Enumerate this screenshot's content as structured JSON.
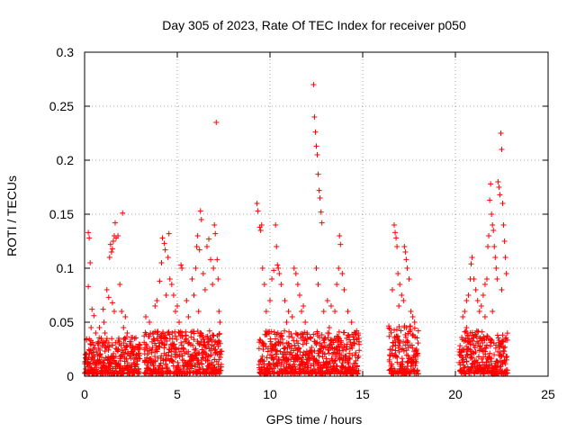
{
  "chart_data": {
    "type": "scatter",
    "title": "Day 305 of 2023, Rate Of TEC Index for receiver p050",
    "xlabel": "GPS time / hours",
    "ylabel": "ROTI / TECUs",
    "xlim": [
      0,
      25
    ],
    "ylim": [
      0,
      0.3
    ],
    "xticks": [
      0,
      5,
      10,
      15,
      20,
      25
    ],
    "xtick_labels": [
      "0",
      "5",
      "10",
      "15",
      "20",
      "25"
    ],
    "yticks": [
      0,
      0.05,
      0.1,
      0.15,
      0.2,
      0.25,
      0.3
    ],
    "ytick_labels": [
      "0",
      "0.05",
      "0.1",
      "0.15",
      "0.2",
      "0.25",
      "0.3"
    ],
    "grid": true,
    "marker": "+",
    "color": "#ff0000",
    "series": [
      {
        "name": "ROTI",
        "points": [
          [
            0.2,
            0.133
          ],
          [
            0.25,
            0.128
          ],
          [
            0.3,
            0.105
          ],
          [
            0.2,
            0.083
          ],
          [
            0.4,
            0.062
          ],
          [
            0.5,
            0.056
          ],
          [
            0.35,
            0.045
          ],
          [
            0.6,
            0.04
          ],
          [
            0.3,
            0.03
          ],
          [
            0.45,
            0.025
          ],
          [
            0.7,
            0.03
          ],
          [
            0.9,
            0.035
          ],
          [
            1.0,
            0.062
          ],
          [
            1.05,
            0.05
          ],
          [
            1.2,
            0.08
          ],
          [
            1.3,
            0.073
          ],
          [
            1.35,
            0.11
          ],
          [
            1.4,
            0.122
          ],
          [
            1.45,
            0.115
          ],
          [
            1.5,
            0.118
          ],
          [
            1.55,
            0.125
          ],
          [
            1.6,
            0.13
          ],
          [
            1.65,
            0.142
          ],
          [
            1.7,
            0.128
          ],
          [
            1.8,
            0.13
          ],
          [
            1.9,
            0.085
          ],
          [
            2.0,
            0.06
          ],
          [
            2.1,
            0.045
          ],
          [
            2.05,
            0.151
          ],
          [
            2.2,
            0.055
          ],
          [
            2.3,
            0.04
          ],
          [
            2.5,
            0.03
          ],
          [
            2.7,
            0.035
          ],
          [
            2.9,
            0.025
          ],
          [
            0.8,
            0.045
          ],
          [
            1.1,
            0.04
          ],
          [
            1.6,
            0.06
          ],
          [
            1.5,
            0.068
          ],
          [
            3.3,
            0.055
          ],
          [
            3.5,
            0.05
          ],
          [
            3.7,
            0.04
          ],
          [
            3.9,
            0.07
          ],
          [
            4.05,
            0.088
          ],
          [
            4.15,
            0.105
          ],
          [
            4.2,
            0.128
          ],
          [
            4.3,
            0.123
          ],
          [
            4.35,
            0.117
          ],
          [
            4.5,
            0.11
          ],
          [
            4.55,
            0.132
          ],
          [
            4.6,
            0.09
          ],
          [
            4.7,
            0.085
          ],
          [
            4.8,
            0.075
          ],
          [
            4.9,
            0.06
          ],
          [
            5.0,
            0.065
          ],
          [
            5.1,
            0.05
          ],
          [
            5.2,
            0.103
          ],
          [
            5.25,
            0.1
          ],
          [
            5.5,
            0.07
          ],
          [
            5.8,
            0.09
          ],
          [
            5.9,
            0.075
          ],
          [
            6.0,
            0.1
          ],
          [
            6.05,
            0.12
          ],
          [
            6.1,
            0.13
          ],
          [
            6.2,
            0.117
          ],
          [
            6.25,
            0.153
          ],
          [
            6.3,
            0.145
          ],
          [
            6.5,
            0.08
          ],
          [
            6.6,
            0.12
          ],
          [
            6.7,
            0.127
          ],
          [
            6.8,
            0.108
          ],
          [
            6.9,
            0.085
          ],
          [
            6.95,
            0.1
          ],
          [
            7.0,
            0.14
          ],
          [
            7.05,
            0.132
          ],
          [
            7.1,
            0.235
          ],
          [
            7.15,
            0.108
          ],
          [
            7.2,
            0.09
          ],
          [
            7.25,
            0.06
          ],
          [
            7.3,
            0.05
          ],
          [
            6.4,
            0.095
          ],
          [
            4.4,
            0.075
          ],
          [
            3.8,
            0.065
          ],
          [
            5.6,
            0.055
          ],
          [
            6.15,
            0.06
          ],
          [
            9.3,
            0.16
          ],
          [
            9.35,
            0.153
          ],
          [
            9.45,
            0.138
          ],
          [
            9.5,
            0.135
          ],
          [
            9.55,
            0.14
          ],
          [
            9.6,
            0.1
          ],
          [
            9.7,
            0.085
          ],
          [
            9.8,
            0.06
          ],
          [
            10.0,
            0.07
          ],
          [
            10.1,
            0.09
          ],
          [
            10.2,
            0.098
          ],
          [
            10.3,
            0.14
          ],
          [
            10.35,
            0.12
          ],
          [
            10.4,
            0.103
          ],
          [
            10.45,
            0.1
          ],
          [
            10.5,
            0.095
          ],
          [
            10.6,
            0.085
          ],
          [
            10.8,
            0.07
          ],
          [
            11.0,
            0.06
          ],
          [
            11.2,
            0.055
          ],
          [
            11.3,
            0.1
          ],
          [
            11.4,
            0.095
          ],
          [
            11.5,
            0.085
          ],
          [
            11.6,
            0.075
          ],
          [
            11.8,
            0.065
          ],
          [
            11.9,
            0.05
          ],
          [
            12.0,
            0.04
          ],
          [
            12.2,
            0.035
          ],
          [
            12.35,
            0.27
          ],
          [
            12.4,
            0.24
          ],
          [
            12.45,
            0.226
          ],
          [
            12.5,
            0.213
          ],
          [
            12.55,
            0.205
          ],
          [
            12.6,
            0.187
          ],
          [
            12.65,
            0.172
          ],
          [
            12.7,
            0.165
          ],
          [
            12.75,
            0.152
          ],
          [
            12.8,
            0.142
          ],
          [
            12.5,
            0.1
          ],
          [
            12.6,
            0.085
          ],
          [
            12.9,
            0.06
          ],
          [
            13.1,
            0.07
          ],
          [
            13.3,
            0.065
          ],
          [
            13.5,
            0.06
          ],
          [
            13.6,
            0.085
          ],
          [
            13.7,
            0.1
          ],
          [
            13.75,
            0.13
          ],
          [
            13.8,
            0.122
          ],
          [
            13.9,
            0.095
          ],
          [
            14.0,
            0.08
          ],
          [
            14.2,
            0.06
          ],
          [
            14.4,
            0.05
          ],
          [
            14.6,
            0.04
          ],
          [
            14.8,
            0.035
          ],
          [
            13.2,
            0.045
          ],
          [
            10.9,
            0.05
          ],
          [
            11.7,
            0.06
          ],
          [
            16.7,
            0.14
          ],
          [
            16.75,
            0.133
          ],
          [
            16.8,
            0.128
          ],
          [
            16.85,
            0.12
          ],
          [
            16.9,
            0.095
          ],
          [
            17.0,
            0.085
          ],
          [
            17.1,
            0.075
          ],
          [
            17.2,
            0.07
          ],
          [
            17.25,
            0.12
          ],
          [
            17.3,
            0.115
          ],
          [
            17.35,
            0.108
          ],
          [
            17.4,
            0.1
          ],
          [
            17.5,
            0.09
          ],
          [
            17.6,
            0.06
          ],
          [
            17.7,
            0.055
          ],
          [
            17.8,
            0.05
          ],
          [
            16.6,
            0.08
          ],
          [
            16.95,
            0.065
          ],
          [
            20.4,
            0.055
          ],
          [
            20.5,
            0.06
          ],
          [
            20.6,
            0.07
          ],
          [
            20.7,
            0.075
          ],
          [
            20.8,
            0.09
          ],
          [
            20.85,
            0.104
          ],
          [
            20.9,
            0.11
          ],
          [
            21.0,
            0.09
          ],
          [
            21.1,
            0.08
          ],
          [
            21.2,
            0.07
          ],
          [
            21.3,
            0.06
          ],
          [
            21.4,
            0.065
          ],
          [
            21.5,
            0.075
          ],
          [
            21.6,
            0.085
          ],
          [
            21.7,
            0.09
          ],
          [
            21.75,
            0.12
          ],
          [
            21.8,
            0.13
          ],
          [
            21.85,
            0.163
          ],
          [
            21.9,
            0.178
          ],
          [
            21.95,
            0.15
          ],
          [
            22.0,
            0.14
          ],
          [
            22.05,
            0.135
          ],
          [
            22.1,
            0.12
          ],
          [
            22.15,
            0.11
          ],
          [
            22.2,
            0.1
          ],
          [
            22.25,
            0.09
          ],
          [
            22.3,
            0.18
          ],
          [
            22.35,
            0.175
          ],
          [
            22.4,
            0.168
          ],
          [
            22.45,
            0.225
          ],
          [
            22.5,
            0.21
          ],
          [
            22.55,
            0.16
          ],
          [
            22.6,
            0.14
          ],
          [
            22.65,
            0.125
          ],
          [
            22.7,
            0.11
          ],
          [
            22.75,
            0.095
          ],
          [
            22.5,
            0.08
          ],
          [
            22.0,
            0.06
          ],
          [
            21.6,
            0.055
          ],
          [
            20.6,
            0.045
          ]
        ]
      }
    ]
  }
}
